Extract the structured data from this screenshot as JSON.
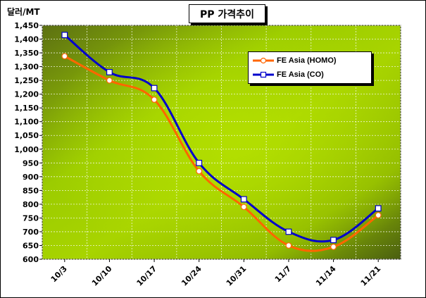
{
  "title": "PP 가격추이",
  "unit_label": "달러/MT",
  "colors": {
    "homo": "#ff6600",
    "co": "#0000cc",
    "plot_bg_light": "#a8d400",
    "plot_bg_dark": "#4a5e10"
  },
  "chart_data": {
    "type": "line",
    "title": "PP 가격추이",
    "ylabel": "달러/MT",
    "ylim": [
      600,
      1450
    ],
    "yticks": [
      600,
      650,
      700,
      750,
      800,
      850,
      900,
      950,
      1000,
      1050,
      1100,
      1150,
      1200,
      1250,
      1300,
      1350,
      1400,
      1450
    ],
    "ytick_labels": [
      "600",
      "650",
      "700",
      "750",
      "800",
      "850",
      "900",
      "950",
      "1,000",
      "1,050",
      "1,100",
      "1,150",
      "1,200",
      "1,250",
      "1,300",
      "1,350",
      "1,400",
      "1,450"
    ],
    "categories": [
      "10/3",
      "10/10",
      "10/17",
      "10/24",
      "10/31",
      "11/7",
      "11/14",
      "11/21"
    ],
    "grid": true,
    "legend_placement": "top-right",
    "series": [
      {
        "name": "FE Asia (HOMO)",
        "marker": "circle",
        "values": [
          1338,
          1250,
          1180,
          920,
          790,
          650,
          645,
          760
        ]
      },
      {
        "name": "FE Asia (CO)",
        "marker": "square",
        "values": [
          1415,
          1280,
          1222,
          950,
          818,
          700,
          670,
          785
        ]
      }
    ]
  }
}
